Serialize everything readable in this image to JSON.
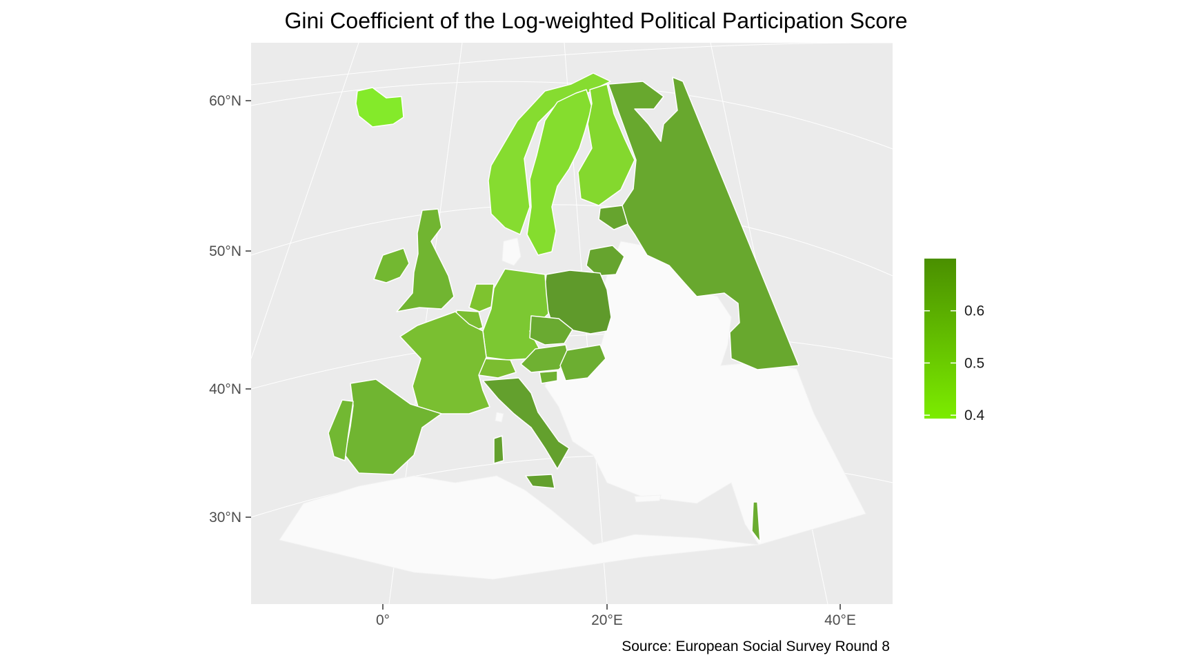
{
  "title": "Gini Coefficient of the Log-weighted Political Participation Score",
  "caption": "Source: European Social Survey Round 8",
  "axes": {
    "y_ticks": [
      "60°N",
      "50°N",
      "40°N",
      "30°N"
    ],
    "x_ticks": [
      "0°",
      "20°E",
      "40°E"
    ]
  },
  "legend": {
    "labels": [
      "0.6",
      "0.5",
      "0.4"
    ],
    "values": [
      0.6,
      0.5,
      0.4
    ],
    "low_color": "#7cec00",
    "high_color": "#4a8f00"
  },
  "colors": {
    "panel_bg": "#ebebeb",
    "grid": "#ffffff",
    "no_data": "#fafafa",
    "border": "#ffffff"
  },
  "regions": [
    {
      "name": "Iceland",
      "value": 0.43,
      "color": "#84ea2a"
    },
    {
      "name": "Norway",
      "value": 0.46,
      "color": "#86dc30"
    },
    {
      "name": "Sweden",
      "value": 0.46,
      "color": "#85dd2e"
    },
    {
      "name": "Finland",
      "value": 0.47,
      "color": "#84d82e"
    },
    {
      "name": "Russia",
      "value": 0.58,
      "color": "#68a82e"
    },
    {
      "name": "Estonia",
      "value": 0.59,
      "color": "#66a42e"
    },
    {
      "name": "Lithuania",
      "value": 0.59,
      "color": "#66a42e"
    },
    {
      "name": "Poland",
      "value": 0.63,
      "color": "#5f9a2b"
    },
    {
      "name": "Ireland",
      "value": 0.55,
      "color": "#73b831"
    },
    {
      "name": "United Kingdom",
      "value": 0.56,
      "color": "#71b531"
    },
    {
      "name": "Netherlands",
      "value": 0.52,
      "color": "#7ec32f"
    },
    {
      "name": "Belgium",
      "value": 0.53,
      "color": "#7abd31"
    },
    {
      "name": "Germany",
      "value": 0.51,
      "color": "#7cc832"
    },
    {
      "name": "Czechia",
      "value": 0.58,
      "color": "#6aaa31"
    },
    {
      "name": "Austria",
      "value": 0.56,
      "color": "#6fb132"
    },
    {
      "name": "Slovenia",
      "value": 0.56,
      "color": "#6fb132"
    },
    {
      "name": "Hungary",
      "value": 0.57,
      "color": "#6cae31"
    },
    {
      "name": "Switzerland",
      "value": 0.53,
      "color": "#7bbd30"
    },
    {
      "name": "France",
      "value": 0.53,
      "color": "#7abf31"
    },
    {
      "name": "Spain",
      "value": 0.56,
      "color": "#70b531"
    },
    {
      "name": "Portugal",
      "value": 0.55,
      "color": "#72b832"
    },
    {
      "name": "Italy",
      "value": 0.61,
      "color": "#63a02d"
    },
    {
      "name": "Israel",
      "value": 0.57,
      "color": "#6aac30"
    }
  ]
}
